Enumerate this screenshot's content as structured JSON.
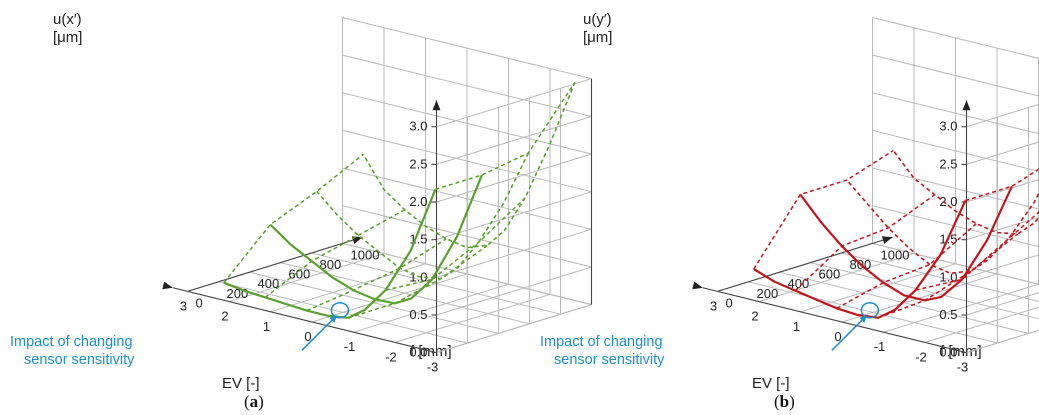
{
  "panels": [
    {
      "id": "a",
      "label_open": "(",
      "label_letter": "a",
      "label_close": ")",
      "color": "#5aa02c",
      "zlabel_line1": "u(x′)",
      "zlabel_line2": "[μm]",
      "annotation_line1": "Impact of changing",
      "annotation_line2": "sensor sensitivity"
    },
    {
      "id": "b",
      "label_open": "(",
      "label_letter": "b",
      "label_close": ")",
      "color": "#c3151c",
      "zlabel_line1": "u(y′)",
      "zlabel_line2": "[μm]",
      "annotation_line1": "Impact of changing",
      "annotation_line2": "sensor sensitivity"
    }
  ],
  "annotation_color": "#1a8fd0",
  "chart_data": [
    {
      "type": "surface3d",
      "panel": "a",
      "xlabel": "EV [-]",
      "ylabel": "f [mm]",
      "zlabel": "u(x′) [μm]",
      "x_ticks": [
        "-3",
        "-2",
        "-1",
        "0",
        "1",
        "2",
        "3"
      ],
      "y_ticks": [
        "0",
        "200",
        "400",
        "600",
        "800",
        "1000"
      ],
      "z_ticks": [
        "0.0",
        "0.5",
        "1.0",
        "1.5",
        "2.0",
        "2.5",
        "3.0"
      ],
      "xlim": [
        -3,
        3
      ],
      "ylim": [
        0,
        1000
      ],
      "zlim": [
        0,
        3
      ],
      "series": [
        {
          "style": "solid",
          "f": 100,
          "points": [
            [
              -2.6,
              2.05
            ],
            [
              -2,
              1.15
            ],
            [
              -1.4,
              0.55
            ],
            [
              -0.9,
              0.22
            ],
            [
              -0.5,
              0.06
            ],
            [
              0,
              0.02
            ],
            [
              0.5,
              0.02
            ],
            [
              1,
              0.04
            ],
            [
              1.5,
              0.06
            ],
            [
              2,
              0.08
            ],
            [
              2.5,
              0.12
            ]
          ]
        },
        {
          "style": "solid",
          "f": 400,
          "points": [
            [
              -2.6,
              2.05
            ],
            [
              -2,
              1.15
            ],
            [
              -1.4,
              0.5
            ],
            [
              -0.9,
              0.18
            ],
            [
              -0.5,
              0.06
            ],
            [
              0,
              0.05
            ],
            [
              0.5,
              0.1
            ],
            [
              1,
              0.2
            ],
            [
              1.5,
              0.35
            ],
            [
              2,
              0.5
            ],
            [
              2.5,
              0.7
            ]
          ]
        },
        {
          "style": "dashed",
          "f": 700,
          "points": [
            [
              -2.6,
              2.15
            ],
            [
              -2,
              1.4
            ],
            [
              -1.4,
              0.8
            ],
            [
              -0.9,
              0.4
            ],
            [
              -0.5,
              0.2
            ],
            [
              0,
              0.15
            ],
            [
              0.5,
              0.2
            ],
            [
              1,
              0.35
            ],
            [
              1.5,
              0.5
            ],
            [
              2,
              0.7
            ],
            [
              2.5,
              0.95
            ]
          ]
        },
        {
          "style": "dashed",
          "f": 1000,
          "points": [
            [
              -2.6,
              2.9
            ],
            [
              -2,
              2.0
            ],
            [
              -1.4,
              1.2
            ],
            [
              -0.9,
              0.7
            ],
            [
              -0.5,
              0.45
            ],
            [
              0,
              0.35
            ],
            [
              0.5,
              0.4
            ],
            [
              1,
              0.5
            ],
            [
              1.5,
              0.65
            ],
            [
              2,
              0.85
            ],
            [
              2.5,
              1.25
            ]
          ]
        }
      ]
    },
    {
      "type": "surface3d",
      "panel": "b",
      "xlabel": "EV [-]",
      "ylabel": "f [mm]",
      "zlabel": "u(y′) [μm]",
      "x_ticks": [
        "-3",
        "-2",
        "-1",
        "0",
        "1",
        "2",
        "3"
      ],
      "y_ticks": [
        "0",
        "200",
        "400",
        "600",
        "800",
        "1000"
      ],
      "z_ticks": [
        "0.0",
        "0.5",
        "1.0",
        "1.5",
        "2.0",
        "2.5",
        "3.0"
      ],
      "xlim": [
        -3,
        3
      ],
      "ylim": [
        0,
        1000
      ],
      "zlim": [
        0,
        3
      ],
      "series": [
        {
          "style": "solid",
          "f": 100,
          "points": [
            [
              -2.6,
              1.9
            ],
            [
              -2,
              1.1
            ],
            [
              -1.4,
              0.55
            ],
            [
              -0.9,
              0.22
            ],
            [
              -0.5,
              0.06
            ],
            [
              0,
              0.03
            ],
            [
              0.5,
              0.05
            ],
            [
              1,
              0.1
            ],
            [
              1.5,
              0.15
            ],
            [
              2,
              0.2
            ],
            [
              2.5,
              0.3
            ]
          ]
        },
        {
          "style": "solid",
          "f": 400,
          "points": [
            [
              -2.6,
              1.9
            ],
            [
              -2,
              1.1
            ],
            [
              -1.4,
              0.5
            ],
            [
              -0.9,
              0.2
            ],
            [
              -0.5,
              0.1
            ],
            [
              0,
              0.1
            ],
            [
              0.5,
              0.2
            ],
            [
              1,
              0.35
            ],
            [
              1.5,
              0.55
            ],
            [
              2,
              0.8
            ],
            [
              2.5,
              1.1
            ]
          ]
        },
        {
          "style": "dashed",
          "f": 700,
          "points": [
            [
              -2.6,
              2.1
            ],
            [
              -2,
              1.4
            ],
            [
              -1.4,
              0.85
            ],
            [
              -0.9,
              0.5
            ],
            [
              -0.5,
              0.3
            ],
            [
              0,
              0.2
            ],
            [
              0.5,
              0.25
            ],
            [
              1,
              0.4
            ],
            [
              1.5,
              0.6
            ],
            [
              2,
              0.85
            ],
            [
              2.5,
              1.1
            ]
          ]
        },
        {
          "style": "dashed",
          "f": 1000,
          "points": [
            [
              -2.6,
              2.5
            ],
            [
              -2,
              1.8
            ],
            [
              -1.4,
              1.2
            ],
            [
              -0.9,
              0.8
            ],
            [
              -0.5,
              0.6
            ],
            [
              0,
              0.55
            ],
            [
              0.5,
              0.6
            ],
            [
              1,
              0.7
            ],
            [
              1.5,
              0.85
            ],
            [
              2,
              1.0
            ],
            [
              2.5,
              1.3
            ]
          ]
        }
      ]
    }
  ]
}
